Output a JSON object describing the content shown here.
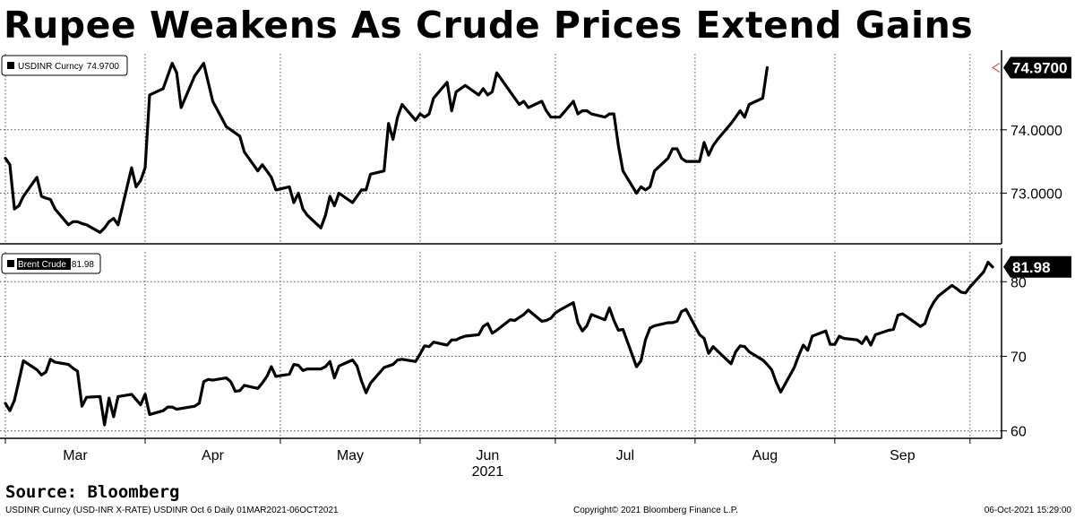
{
  "title": "Rupee Weakens As Crude Prices Extend Gains",
  "source": "Source: Bloomberg",
  "footer": {
    "left": "USDINR Curncy (USD-INR X-RATE) USDINR Oct 6  Daily 01MAR2021-06OCT2021",
    "middle": "Copyright© 2021 Bloomberg Finance L.P.",
    "right": "06-Oct-2021 15:29:00"
  },
  "colors": {
    "line": "#000000",
    "grid": "#555555",
    "last_marker": "#d9534f"
  },
  "chart_data": [
    {
      "type": "line",
      "legend": "USDINR Curncy",
      "legend_value": "74.9700",
      "last_value_label": "74.9700",
      "ylim": [
        72.2,
        75.2
      ],
      "yticks": [
        73,
        74
      ],
      "ytick_labels": [
        "73.0000",
        "74.0000"
      ],
      "x_start": "2021-03-01",
      "x_end": "2021-10-06",
      "x_tick_dates": [
        "2021-03-01",
        "2021-04-01",
        "2021-05-01",
        "2021-06-01",
        "2021-07-01",
        "2021-08-01",
        "2021-09-01",
        "2021-10-01"
      ],
      "legend_position": "top-left",
      "points": [
        [
          "2021-03-01",
          73.55
        ],
        [
          "2021-03-02",
          73.45
        ],
        [
          "2021-03-03",
          72.75
        ],
        [
          "2021-03-04",
          72.8
        ],
        [
          "2021-03-05",
          72.95
        ],
        [
          "2021-03-08",
          73.25
        ],
        [
          "2021-03-09",
          72.95
        ],
        [
          "2021-03-10",
          72.92
        ],
        [
          "2021-03-11",
          72.9
        ],
        [
          "2021-03-12",
          72.75
        ],
        [
          "2021-03-15",
          72.5
        ],
        [
          "2021-03-16",
          72.55
        ],
        [
          "2021-03-17",
          72.55
        ],
        [
          "2021-03-18",
          72.52
        ],
        [
          "2021-03-19",
          72.5
        ],
        [
          "2021-03-22",
          72.38
        ],
        [
          "2021-03-23",
          72.45
        ],
        [
          "2021-03-24",
          72.55
        ],
        [
          "2021-03-25",
          72.6
        ],
        [
          "2021-03-26",
          72.5
        ],
        [
          "2021-03-29",
          73.4
        ],
        [
          "2021-03-30",
          73.1
        ],
        [
          "2021-03-31",
          73.2
        ],
        [
          "2021-04-01",
          73.4
        ],
        [
          "2021-04-02",
          74.55
        ],
        [
          "2021-04-05",
          74.65
        ],
        [
          "2021-04-06",
          74.85
        ],
        [
          "2021-04-07",
          75.05
        ],
        [
          "2021-04-08",
          74.9
        ],
        [
          "2021-04-09",
          74.35
        ],
        [
          "2021-04-12",
          74.85
        ],
        [
          "2021-04-13",
          74.95
        ],
        [
          "2021-04-14",
          75.05
        ],
        [
          "2021-04-15",
          74.75
        ],
        [
          "2021-04-16",
          74.45
        ],
        [
          "2021-04-19",
          74.05
        ],
        [
          "2021-04-20",
          74.0
        ],
        [
          "2021-04-21",
          73.95
        ],
        [
          "2021-04-22",
          73.9
        ],
        [
          "2021-04-23",
          73.65
        ],
        [
          "2021-04-26",
          73.35
        ],
        [
          "2021-04-27",
          73.45
        ],
        [
          "2021-04-28",
          73.35
        ],
        [
          "2021-04-29",
          73.25
        ],
        [
          "2021-04-30",
          73.05
        ],
        [
          "2021-05-03",
          73.1
        ],
        [
          "2021-05-04",
          72.85
        ],
        [
          "2021-05-05",
          73.0
        ],
        [
          "2021-05-06",
          72.75
        ],
        [
          "2021-05-07",
          72.65
        ],
        [
          "2021-05-10",
          72.45
        ],
        [
          "2021-05-11",
          72.65
        ],
        [
          "2021-05-12",
          72.95
        ],
        [
          "2021-05-13",
          72.8
        ],
        [
          "2021-05-14",
          73.0
        ],
        [
          "2021-05-17",
          72.85
        ],
        [
          "2021-05-18",
          72.95
        ],
        [
          "2021-05-19",
          73.05
        ],
        [
          "2021-05-20",
          73.05
        ],
        [
          "2021-05-21",
          73.3
        ],
        [
          "2021-05-24",
          73.35
        ],
        [
          "2021-05-25",
          74.1
        ],
        [
          "2021-05-26",
          73.85
        ],
        [
          "2021-05-27",
          74.2
        ],
        [
          "2021-05-28",
          74.4
        ],
        [
          "2021-05-31",
          74.15
        ],
        [
          "2021-06-01",
          74.25
        ],
        [
          "2021-06-02",
          74.2
        ],
        [
          "2021-06-03",
          74.25
        ],
        [
          "2021-06-04",
          74.5
        ],
        [
          "2021-06-07",
          74.75
        ],
        [
          "2021-06-08",
          74.3
        ],
        [
          "2021-06-09",
          74.6
        ],
        [
          "2021-06-10",
          74.65
        ],
        [
          "2021-06-11",
          74.7
        ],
        [
          "2021-06-14",
          74.55
        ],
        [
          "2021-06-15",
          74.65
        ],
        [
          "2021-06-16",
          74.55
        ],
        [
          "2021-06-17",
          74.6
        ],
        [
          "2021-06-18",
          74.9
        ],
        [
          "2021-06-21",
          74.6
        ],
        [
          "2021-06-22",
          74.5
        ],
        [
          "2021-06-23",
          74.4
        ],
        [
          "2021-06-24",
          74.45
        ],
        [
          "2021-06-25",
          74.35
        ],
        [
          "2021-06-28",
          74.45
        ],
        [
          "2021-06-29",
          74.3
        ],
        [
          "2021-06-30",
          74.2
        ],
        [
          "2021-07-01",
          74.2
        ],
        [
          "2021-07-02",
          74.2
        ],
        [
          "2021-07-05",
          74.45
        ],
        [
          "2021-07-06",
          74.25
        ],
        [
          "2021-07-07",
          74.3
        ],
        [
          "2021-07-08",
          74.3
        ],
        [
          "2021-07-09",
          74.25
        ],
        [
          "2021-07-12",
          74.2
        ],
        [
          "2021-07-13",
          74.25
        ],
        [
          "2021-07-14",
          74.25
        ],
        [
          "2021-07-15",
          73.75
        ],
        [
          "2021-07-16",
          73.35
        ],
        [
          "2021-07-19",
          73.0
        ],
        [
          "2021-07-20",
          73.1
        ],
        [
          "2021-07-21",
          73.05
        ],
        [
          "2021-07-22",
          73.1
        ],
        [
          "2021-07-23",
          73.35
        ],
        [
          "2021-07-26",
          73.55
        ],
        [
          "2021-07-27",
          73.7
        ],
        [
          "2021-07-28",
          73.7
        ],
        [
          "2021-07-29",
          73.55
        ],
        [
          "2021-07-30",
          73.5
        ],
        [
          "2021-08-02",
          73.5
        ],
        [
          "2021-08-03",
          73.8
        ],
        [
          "2021-08-04",
          73.6
        ],
        [
          "2021-08-05",
          73.75
        ],
        [
          "2021-08-06",
          73.85
        ],
        [
          "2021-08-09",
          74.1
        ],
        [
          "2021-08-10",
          74.2
        ],
        [
          "2021-08-11",
          74.3
        ],
        [
          "2021-08-12",
          74.2
        ],
        [
          "2021-08-13",
          74.4
        ],
        [
          "2021-08-16",
          74.5
        ],
        [
          "2021-08-17",
          74.98
        ]
      ]
    },
    {
      "type": "line",
      "legend": "Brent Crude",
      "legend_value": "81.98",
      "last_value_label": "81.98",
      "ylim": [
        59,
        84
      ],
      "yticks": [
        60,
        70,
        80
      ],
      "ytick_labels": [
        "60",
        "70",
        "80"
      ],
      "x_start": "2021-03-01",
      "x_end": "2021-10-06",
      "x_tick_dates": [
        "2021-03-01",
        "2021-04-01",
        "2021-05-01",
        "2021-06-01",
        "2021-07-01",
        "2021-08-01",
        "2021-09-01",
        "2021-10-01"
      ],
      "x_tick_labels": [
        "Mar",
        "Apr",
        "May",
        "Jun",
        "Jul",
        "Aug",
        "Sep"
      ],
      "x_year_label": "2021",
      "legend_position": "top-left",
      "points": [
        [
          "2021-03-01",
          63.7
        ],
        [
          "2021-03-02",
          62.7
        ],
        [
          "2021-03-03",
          64.1
        ],
        [
          "2021-03-04",
          66.7
        ],
        [
          "2021-03-05",
          69.4
        ],
        [
          "2021-03-08",
          68.2
        ],
        [
          "2021-03-09",
          67.5
        ],
        [
          "2021-03-10",
          67.9
        ],
        [
          "2021-03-11",
          69.6
        ],
        [
          "2021-03-12",
          69.2
        ],
        [
          "2021-03-15",
          68.9
        ],
        [
          "2021-03-16",
          68.4
        ],
        [
          "2021-03-17",
          68.0
        ],
        [
          "2021-03-18",
          63.3
        ],
        [
          "2021-03-19",
          64.5
        ],
        [
          "2021-03-22",
          64.6
        ],
        [
          "2021-03-23",
          60.8
        ],
        [
          "2021-03-24",
          64.4
        ],
        [
          "2021-03-25",
          61.9
        ],
        [
          "2021-03-26",
          64.6
        ],
        [
          "2021-03-29",
          64.9
        ],
        [
          "2021-03-30",
          64.2
        ],
        [
          "2021-03-31",
          63.5
        ],
        [
          "2021-04-01",
          64.9
        ],
        [
          "2021-04-02",
          62.2
        ],
        [
          "2021-04-05",
          62.7
        ],
        [
          "2021-04-06",
          63.2
        ],
        [
          "2021-04-07",
          63.2
        ],
        [
          "2021-04-08",
          62.9
        ],
        [
          "2021-04-09",
          63.0
        ],
        [
          "2021-04-12",
          63.3
        ],
        [
          "2021-04-13",
          63.7
        ],
        [
          "2021-04-14",
          66.6
        ],
        [
          "2021-04-15",
          66.9
        ],
        [
          "2021-04-16",
          66.8
        ],
        [
          "2021-04-19",
          67.1
        ],
        [
          "2021-04-20",
          66.6
        ],
        [
          "2021-04-21",
          65.3
        ],
        [
          "2021-04-22",
          65.4
        ],
        [
          "2021-04-23",
          66.1
        ],
        [
          "2021-04-26",
          65.7
        ],
        [
          "2021-04-27",
          66.4
        ],
        [
          "2021-04-28",
          67.3
        ],
        [
          "2021-04-29",
          68.6
        ],
        [
          "2021-04-30",
          67.3
        ],
        [
          "2021-05-03",
          67.6
        ],
        [
          "2021-05-04",
          68.9
        ],
        [
          "2021-05-05",
          68.8
        ],
        [
          "2021-05-06",
          68.1
        ],
        [
          "2021-05-07",
          68.3
        ],
        [
          "2021-05-10",
          68.3
        ],
        [
          "2021-05-11",
          68.6
        ],
        [
          "2021-05-12",
          69.3
        ],
        [
          "2021-05-13",
          67.1
        ],
        [
          "2021-05-14",
          68.7
        ],
        [
          "2021-05-17",
          69.5
        ],
        [
          "2021-05-18",
          68.7
        ],
        [
          "2021-05-19",
          66.7
        ],
        [
          "2021-05-20",
          65.1
        ],
        [
          "2021-05-21",
          66.4
        ],
        [
          "2021-05-24",
          68.5
        ],
        [
          "2021-05-25",
          68.7
        ],
        [
          "2021-05-26",
          68.9
        ],
        [
          "2021-05-27",
          69.5
        ],
        [
          "2021-05-28",
          69.6
        ],
        [
          "2021-05-31",
          69.3
        ],
        [
          "2021-06-01",
          70.3
        ],
        [
          "2021-06-02",
          71.4
        ],
        [
          "2021-06-03",
          71.3
        ],
        [
          "2021-06-04",
          71.9
        ],
        [
          "2021-06-07",
          71.5
        ],
        [
          "2021-06-08",
          72.2
        ],
        [
          "2021-06-09",
          72.2
        ],
        [
          "2021-06-10",
          72.5
        ],
        [
          "2021-06-11",
          72.7
        ],
        [
          "2021-06-14",
          72.9
        ],
        [
          "2021-06-15",
          74.0
        ],
        [
          "2021-06-16",
          74.4
        ],
        [
          "2021-06-17",
          73.1
        ],
        [
          "2021-06-18",
          73.5
        ],
        [
          "2021-06-21",
          74.9
        ],
        [
          "2021-06-22",
          74.8
        ],
        [
          "2021-06-23",
          75.2
        ],
        [
          "2021-06-24",
          75.6
        ],
        [
          "2021-06-25",
          76.2
        ],
        [
          "2021-06-28",
          74.7
        ],
        [
          "2021-06-29",
          74.8
        ],
        [
          "2021-06-30",
          75.1
        ],
        [
          "2021-07-01",
          75.8
        ],
        [
          "2021-07-02",
          76.2
        ],
        [
          "2021-07-05",
          77.2
        ],
        [
          "2021-07-06",
          74.5
        ],
        [
          "2021-07-07",
          73.4
        ],
        [
          "2021-07-08",
          74.1
        ],
        [
          "2021-07-09",
          75.6
        ],
        [
          "2021-07-12",
          74.9
        ],
        [
          "2021-07-13",
          76.5
        ],
        [
          "2021-07-14",
          74.8
        ],
        [
          "2021-07-15",
          73.5
        ],
        [
          "2021-07-16",
          73.6
        ],
        [
          "2021-07-19",
          68.6
        ],
        [
          "2021-07-20",
          69.4
        ],
        [
          "2021-07-21",
          72.2
        ],
        [
          "2021-07-22",
          73.8
        ],
        [
          "2021-07-23",
          74.1
        ],
        [
          "2021-07-26",
          74.5
        ],
        [
          "2021-07-27",
          74.5
        ],
        [
          "2021-07-28",
          74.7
        ],
        [
          "2021-07-29",
          76.0
        ],
        [
          "2021-07-30",
          76.3
        ],
        [
          "2021-08-02",
          72.9
        ],
        [
          "2021-08-03",
          72.4
        ],
        [
          "2021-08-04",
          70.4
        ],
        [
          "2021-08-05",
          71.3
        ],
        [
          "2021-08-06",
          70.7
        ],
        [
          "2021-08-09",
          69.0
        ],
        [
          "2021-08-10",
          70.6
        ],
        [
          "2021-08-11",
          71.4
        ],
        [
          "2021-08-12",
          71.3
        ],
        [
          "2021-08-13",
          70.6
        ],
        [
          "2021-08-16",
          69.5
        ],
        [
          "2021-08-17",
          68.9
        ],
        [
          "2021-08-18",
          68.2
        ],
        [
          "2021-08-19",
          66.5
        ],
        [
          "2021-08-20",
          65.2
        ],
        [
          "2021-08-23",
          68.5
        ],
        [
          "2021-08-24",
          70.1
        ],
        [
          "2021-08-25",
          71.5
        ],
        [
          "2021-08-26",
          70.8
        ],
        [
          "2021-08-27",
          72.7
        ],
        [
          "2021-08-30",
          73.4
        ],
        [
          "2021-08-31",
          71.6
        ],
        [
          "2021-09-01",
          71.6
        ],
        [
          "2021-09-02",
          72.7
        ],
        [
          "2021-09-03",
          72.4
        ],
        [
          "2021-09-06",
          72.2
        ],
        [
          "2021-09-07",
          71.7
        ],
        [
          "2021-09-08",
          72.6
        ],
        [
          "2021-09-09",
          71.5
        ],
        [
          "2021-09-10",
          72.9
        ],
        [
          "2021-09-13",
          73.5
        ],
        [
          "2021-09-14",
          73.6
        ],
        [
          "2021-09-15",
          75.5
        ],
        [
          "2021-09-16",
          75.7
        ],
        [
          "2021-09-17",
          75.3
        ],
        [
          "2021-09-20",
          74.0
        ],
        [
          "2021-09-21",
          74.4
        ],
        [
          "2021-09-22",
          76.2
        ],
        [
          "2021-09-23",
          77.3
        ],
        [
          "2021-09-24",
          78.1
        ],
        [
          "2021-09-27",
          79.5
        ],
        [
          "2021-09-28",
          79.1
        ],
        [
          "2021-09-29",
          78.6
        ],
        [
          "2021-09-30",
          78.5
        ],
        [
          "2021-10-01",
          79.3
        ],
        [
          "2021-10-04",
          81.3
        ],
        [
          "2021-10-05",
          82.6
        ],
        [
          "2021-10-06",
          81.98
        ]
      ]
    }
  ]
}
